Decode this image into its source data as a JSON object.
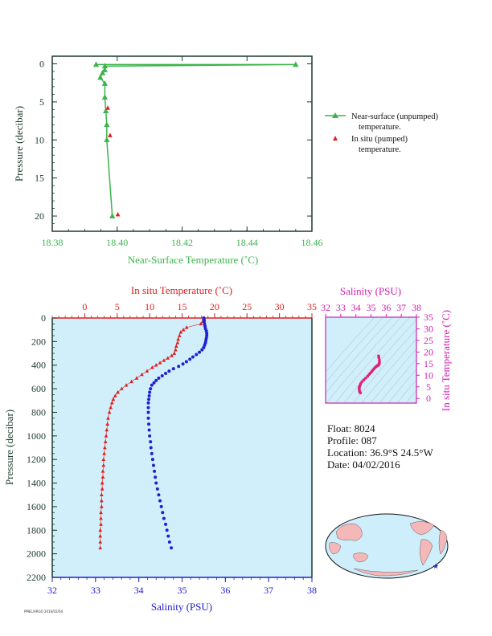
{
  "colors": {
    "green": "#3cb44b",
    "red": "#e0201f",
    "blue": "#2020d0",
    "magenta": "#d01fb0",
    "axis_dark": "#1c3a2a",
    "plot_bg": "#d0effb",
    "land": "#f4b8b8",
    "ocean": "#cfeefb"
  },
  "info": {
    "float": "Float:  8024",
    "profile": "Profile:  087",
    "location": "Location:  36.9°S  24.5°W",
    "date": "Date:  04/02/2016"
  },
  "footer_note": "PMEL/ARGO 2016/02/04",
  "chart_data": [
    {
      "type": "line",
      "title": "",
      "xlabel": "Near-Surface Temperature (˚C)",
      "ylabel": "Pressure (decibar)",
      "xlim": [
        18.38,
        18.46
      ],
      "ylim": [
        22,
        -1
      ],
      "x_ticks": [
        "18.38",
        "18.40",
        "18.42",
        "18.44",
        "18.46"
      ],
      "y_ticks": [
        "0",
        "5",
        "10",
        "15",
        "20"
      ],
      "legend": [
        {
          "label_line1": "Near-surface (unpumped)",
          "label_line2": "temperature."
        },
        {
          "label_line1": "In situ (pumped)",
          "label_line2": "temperature."
        }
      ],
      "series": [
        {
          "name": "Near-surface (unpumped) temperature.",
          "x": [
            18.455,
            18.3962,
            18.3962,
            18.3955,
            18.3948,
            18.3962,
            18.3962,
            18.3965,
            18.3968,
            18.3968,
            18.3985
          ],
          "y": [
            0.1,
            0.3,
            0.8,
            1.2,
            1.8,
            2.6,
            4.4,
            6.2,
            8.0,
            10.0,
            20.0
          ],
          "extra_start": {
            "x": 18.3935,
            "y": 0.1
          }
        },
        {
          "name": "In situ (pumped) temperature.",
          "x": [
            18.3971,
            18.3978,
            18.4002
          ],
          "y": [
            5.8,
            9.4,
            19.8
          ]
        }
      ]
    },
    {
      "type": "line",
      "title": "",
      "xlabel_top": "In situ Temperature (˚C)",
      "xlabel_bottom": "Salinity (PSU)",
      "ylabel": "Pressure (decibar)",
      "temp_lim": [
        -5,
        35
      ],
      "sal_lim": [
        32,
        38
      ],
      "ylim": [
        2200,
        0
      ],
      "temp_ticks": [
        "0",
        "5",
        "10",
        "15",
        "20",
        "25",
        "30",
        "35"
      ],
      "sal_ticks": [
        "32",
        "33",
        "34",
        "35",
        "36",
        "37",
        "38"
      ],
      "y_ticks": [
        "0",
        "200",
        "400",
        "600",
        "800",
        "1000",
        "1200",
        "1400",
        "1600",
        "1800",
        "2000",
        "2200"
      ],
      "temperature": {
        "pressure": [
          0,
          10,
          20,
          30,
          50,
          80,
          100,
          120,
          150,
          180,
          210,
          240,
          270,
          300,
          320,
          340,
          360,
          380,
          400,
          420,
          450,
          480,
          510,
          540,
          570,
          600,
          630,
          660,
          690,
          720,
          760,
          800,
          850,
          900,
          950,
          1000,
          1050,
          1100,
          1150,
          1200,
          1250,
          1300,
          1350,
          1400,
          1450,
          1500,
          1550,
          1600,
          1650,
          1700,
          1750,
          1800,
          1850,
          1900,
          1950
        ],
        "values": [
          18.4,
          18.4,
          18.3,
          18.2,
          17.9,
          15.7,
          15.2,
          14.8,
          14.6,
          14.4,
          14.3,
          14.1,
          14.0,
          13.8,
          13.4,
          12.8,
          12.2,
          11.6,
          11.0,
          10.4,
          9.6,
          8.8,
          8.0,
          7.2,
          6.4,
          5.7,
          5.1,
          4.7,
          4.4,
          4.2,
          4.0,
          3.8,
          3.6,
          3.5,
          3.4,
          3.3,
          3.2,
          3.1,
          3.0,
          2.9,
          2.9,
          2.8,
          2.8,
          2.7,
          2.7,
          2.6,
          2.6,
          2.6,
          2.5,
          2.5,
          2.5,
          2.4,
          2.4,
          2.4,
          2.4
        ]
      },
      "salinity": {
        "pressure": [
          0,
          15,
          30,
          50,
          70,
          90,
          110,
          130,
          150,
          170,
          190,
          210,
          230,
          250,
          270,
          290,
          310,
          330,
          350,
          370,
          390,
          410,
          430,
          450,
          470,
          490,
          510,
          530,
          550,
          570,
          600,
          630,
          660,
          690,
          720,
          760,
          800,
          850,
          900,
          950,
          1000,
          1050,
          1100,
          1150,
          1200,
          1250,
          1300,
          1350,
          1400,
          1450,
          1500,
          1550,
          1600,
          1650,
          1700,
          1750,
          1800,
          1850,
          1900,
          1950
        ],
        "values": [
          35.5,
          35.5,
          35.51,
          35.52,
          35.53,
          35.54,
          35.56,
          35.57,
          35.57,
          35.56,
          35.55,
          35.54,
          35.52,
          35.5,
          35.46,
          35.4,
          35.33,
          35.25,
          35.18,
          35.1,
          35.02,
          34.92,
          34.8,
          34.7,
          34.62,
          34.54,
          34.46,
          34.4,
          34.35,
          34.3,
          34.27,
          34.25,
          34.24,
          34.23,
          34.22,
          34.22,
          34.22,
          34.22,
          34.23,
          34.24,
          34.25,
          34.27,
          34.28,
          34.3,
          34.32,
          34.34,
          34.36,
          34.38,
          34.4,
          34.43,
          34.46,
          34.49,
          34.52,
          34.55,
          34.58,
          34.62,
          34.65,
          34.68,
          34.71,
          34.75
        ]
      }
    },
    {
      "type": "scatter",
      "title": "",
      "xlabel": "Salinity (PSU)",
      "ylabel": "In situ Temperature (˚C)",
      "xlim": [
        32,
        38
      ],
      "ylim": [
        -2,
        35
      ],
      "x_ticks": [
        "32",
        "33",
        "34",
        "35",
        "36",
        "37",
        "38"
      ],
      "y_ticks": [
        "0",
        "5",
        "10",
        "15",
        "20",
        "25",
        "30",
        "35"
      ],
      "x": [
        34.3,
        34.26,
        34.24,
        34.23,
        34.22,
        34.24,
        34.28,
        34.32,
        34.4,
        34.52,
        34.65,
        34.78,
        34.88,
        34.97,
        35.05,
        35.12,
        35.2,
        35.28,
        35.35,
        35.42,
        35.48,
        35.52,
        35.54,
        35.55,
        35.56,
        35.55,
        35.52,
        35.5
      ],
      "y": [
        2.4,
        2.8,
        3.2,
        3.8,
        4.4,
        5.1,
        5.7,
        6.4,
        7.2,
        8.0,
        8.8,
        9.6,
        10.4,
        11.0,
        11.6,
        12.2,
        12.8,
        13.4,
        13.8,
        14.1,
        14.3,
        14.5,
        14.8,
        15.2,
        15.7,
        16.5,
        17.5,
        18.3
      ]
    }
  ],
  "map": {
    "marker_symbol": "★"
  }
}
